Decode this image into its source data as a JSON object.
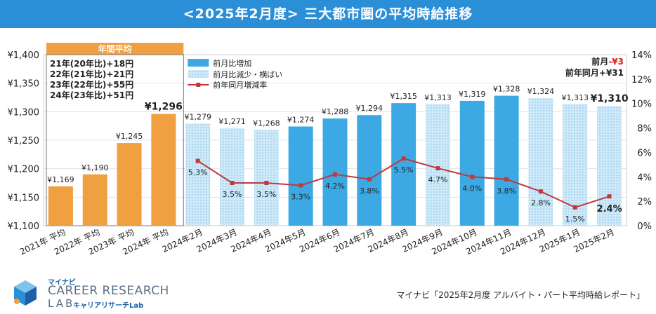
{
  "header": {
    "title": "<2025年2月度> 三大都市圏の平均時給推移"
  },
  "chart_data": {
    "type": "bar",
    "title": "<2025年2月度> 三大都市圏の平均時給推移",
    "categories": [
      "2021年 平均",
      "2022年 平均",
      "2023年 平均",
      "2024年 平均",
      "2024年2月",
      "2024年3月",
      "2024年4月",
      "2024年5月",
      "2024年6月",
      "2024年7月",
      "2024年8月",
      "2024年9月",
      "2024年10月",
      "2024年11月",
      "2024年12月",
      "2025年1月",
      "2025年2月"
    ],
    "series": [
      {
        "name": "年間平均",
        "kind": "annual",
        "values": [
          1169,
          1190,
          1245,
          1296,
          null,
          null,
          null,
          null,
          null,
          null,
          null,
          null,
          null,
          null,
          null,
          null,
          null
        ],
        "labels": [
          "¥1,169",
          "¥1,190",
          "¥1,245",
          "¥1,296",
          "",
          "",
          "",
          "",
          "",
          "",
          "",
          "",
          "",
          "",
          "",
          "",
          ""
        ]
      },
      {
        "name": "前月比増加",
        "kind": "increase",
        "values": [
          null,
          null,
          null,
          null,
          null,
          null,
          null,
          1274,
          1288,
          1294,
          1315,
          null,
          1319,
          1328,
          null,
          null,
          null
        ],
        "labels": [
          "",
          "",
          "",
          "",
          "",
          "",
          "",
          "¥1,274",
          "¥1,288",
          "¥1,294",
          "¥1,315",
          "",
          "¥1,319",
          "¥1,328",
          "",
          "",
          ""
        ]
      },
      {
        "name": "前月比減少・横ばい",
        "kind": "decrease",
        "values": [
          null,
          null,
          null,
          null,
          1279,
          1271,
          1268,
          null,
          null,
          null,
          null,
          1313,
          null,
          null,
          1324,
          1313,
          1310
        ],
        "labels": [
          "",
          "",
          "",
          "",
          "¥1,279",
          "¥1,271",
          "¥1,268",
          "",
          "",
          "",
          "",
          "¥1,313",
          "",
          "",
          "¥1,324",
          "¥1,313",
          "¥1,310"
        ]
      },
      {
        "name": "前年同月増減率",
        "kind": "line",
        "axis": "right",
        "values": [
          null,
          null,
          null,
          null,
          5.3,
          3.5,
          3.5,
          3.3,
          4.2,
          3.8,
          5.5,
          4.7,
          4.0,
          3.8,
          2.8,
          1.5,
          2.4
        ],
        "labels": [
          "",
          "",
          "",
          "",
          "5.3%",
          "3.5%",
          "3.5%",
          "3.3%",
          "4.2%",
          "3.8%",
          "5.5%",
          "4.7%",
          "4.0%",
          "3.8%",
          "2.8%",
          "1.5%",
          "2.4%"
        ]
      }
    ],
    "ylabel": "",
    "xlabel": "",
    "ylim": [
      1100,
      1400
    ],
    "yticks": [
      "¥1,100",
      "¥1,150",
      "¥1,200",
      "¥1,250",
      "¥1,300",
      "¥1,350",
      "¥1,400"
    ],
    "y2lim": [
      0,
      14
    ],
    "y2ticks": [
      "0%",
      "2%",
      "4%",
      "6%",
      "8%",
      "10%",
      "12%",
      "14%"
    ],
    "legend": [
      "前月比増加",
      "前月比減少・横ばい",
      "前年同月増減率"
    ],
    "annual_box": {
      "title": "年間平均",
      "lines": [
        "21年(20年比)+18円",
        "22年(21年比)+21円",
        "23年(22年比)+55円",
        "24年(23年比)+51円"
      ]
    },
    "annotation": {
      "mom_label": "前月",
      "mom_value": "-¥3",
      "yoy_text": "前年同月+¥31"
    },
    "colors": {
      "annual": "#f0a040",
      "increase": "#3da9e4",
      "decrease_bg": "#cfe9f8",
      "decrease_dot": "#8ecdf0",
      "line": "#c0393b"
    }
  },
  "footer": {
    "logo_small": "マイナビ",
    "logo_main": "CAREER RESEARCH",
    "logo_lab": "LAB",
    "logo_sub": "キャリアリサーチLab",
    "source": "マイナビ「2025年2月度 アルバイト・パート平均時給レポート」"
  }
}
